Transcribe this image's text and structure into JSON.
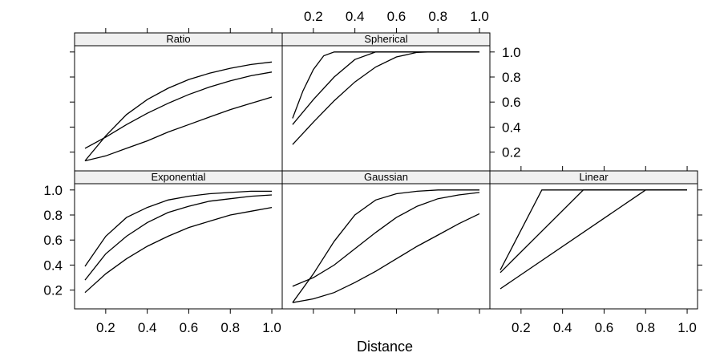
{
  "chart_data": {
    "type": "line",
    "layout": "trellis",
    "xlabel": "Distance",
    "ylabel": "",
    "xlim": [
      0.05,
      1.05
    ],
    "ylim": [
      0.05,
      1.05
    ],
    "x_ticks": [
      0.2,
      0.4,
      0.6,
      0.8,
      1.0
    ],
    "y_ticks": [
      0.2,
      0.4,
      0.6,
      0.8,
      1.0
    ],
    "x_tick_labels": [
      "0.2",
      "0.4",
      "0.6",
      "0.8",
      "1.0"
    ],
    "y_tick_labels": [
      "0.2",
      "0.4",
      "0.6",
      "0.8",
      "1.0"
    ],
    "line_color": "#000000",
    "strip_color": "#f0f0f0",
    "panels": [
      {
        "title": "Ratio",
        "row": 0,
        "col": 0,
        "series": [
          {
            "x": [
              0.1,
              0.2,
              0.3,
              0.4,
              0.5,
              0.6,
              0.7,
              0.8,
              0.9,
              1.0
            ],
            "y": [
              0.13,
              0.33,
              0.5,
              0.62,
              0.71,
              0.78,
              0.83,
              0.87,
              0.9,
              0.92
            ]
          },
          {
            "x": [
              0.1,
              0.2,
              0.3,
              0.4,
              0.5,
              0.6,
              0.7,
              0.8,
              0.9,
              1.0
            ],
            "y": [
              0.23,
              0.32,
              0.42,
              0.51,
              0.59,
              0.66,
              0.72,
              0.77,
              0.81,
              0.84
            ]
          },
          {
            "x": [
              0.1,
              0.2,
              0.3,
              0.4,
              0.5,
              0.6,
              0.7,
              0.8,
              0.9,
              1.0
            ],
            "y": [
              0.13,
              0.17,
              0.23,
              0.29,
              0.36,
              0.42,
              0.48,
              0.54,
              0.59,
              0.64
            ]
          }
        ]
      },
      {
        "title": "Spherical",
        "row": 0,
        "col": 1,
        "series": [
          {
            "x": [
              0.1,
              0.15,
              0.2,
              0.25,
              0.3,
              0.4,
              0.5,
              0.6,
              0.7,
              0.8,
              0.9,
              1.0
            ],
            "y": [
              0.47,
              0.69,
              0.86,
              0.97,
              1.0,
              1.0,
              1.0,
              1.0,
              1.0,
              1.0,
              1.0,
              1.0
            ]
          },
          {
            "x": [
              0.1,
              0.2,
              0.3,
              0.4,
              0.5,
              0.6,
              0.7,
              0.8,
              0.9,
              1.0
            ],
            "y": [
              0.42,
              0.62,
              0.8,
              0.94,
              1.0,
              1.0,
              1.0,
              1.0,
              1.0,
              1.0
            ]
          },
          {
            "x": [
              0.1,
              0.2,
              0.3,
              0.4,
              0.5,
              0.6,
              0.7,
              0.75,
              0.8,
              0.9,
              1.0
            ],
            "y": [
              0.26,
              0.44,
              0.61,
              0.76,
              0.88,
              0.96,
              0.997,
              1.0,
              1.0,
              1.0,
              1.0
            ]
          }
        ]
      },
      {
        "title": "Exponential",
        "row": 1,
        "col": 0,
        "series": [
          {
            "x": [
              0.1,
              0.2,
              0.3,
              0.4,
              0.5,
              0.6,
              0.7,
              0.8,
              0.9,
              1.0
            ],
            "y": [
              0.39,
              0.63,
              0.78,
              0.86,
              0.92,
              0.95,
              0.97,
              0.98,
              0.99,
              0.99
            ]
          },
          {
            "x": [
              0.1,
              0.2,
              0.3,
              0.4,
              0.5,
              0.6,
              0.7,
              0.8,
              0.9,
              1.0
            ],
            "y": [
              0.28,
              0.49,
              0.63,
              0.74,
              0.82,
              0.87,
              0.91,
              0.93,
              0.95,
              0.96
            ]
          },
          {
            "x": [
              0.1,
              0.2,
              0.3,
              0.4,
              0.5,
              0.6,
              0.7,
              0.8,
              0.9,
              1.0
            ],
            "y": [
              0.18,
              0.33,
              0.45,
              0.55,
              0.63,
              0.7,
              0.75,
              0.8,
              0.83,
              0.86
            ]
          }
        ]
      },
      {
        "title": "Gaussian",
        "row": 1,
        "col": 1,
        "series": [
          {
            "x": [
              0.1,
              0.2,
              0.3,
              0.4,
              0.5,
              0.6,
              0.7,
              0.8,
              0.9,
              1.0
            ],
            "y": [
              0.1,
              0.33,
              0.59,
              0.8,
              0.92,
              0.97,
              0.99,
              1.0,
              1.0,
              1.0
            ]
          },
          {
            "x": [
              0.1,
              0.2,
              0.3,
              0.4,
              0.5,
              0.6,
              0.7,
              0.8,
              0.9,
              1.0
            ],
            "y": [
              0.23,
              0.3,
              0.4,
              0.53,
              0.66,
              0.78,
              0.87,
              0.93,
              0.96,
              0.98
            ]
          },
          {
            "x": [
              0.1,
              0.2,
              0.3,
              0.4,
              0.5,
              0.6,
              0.7,
              0.8,
              0.9,
              1.0
            ],
            "y": [
              0.1,
              0.13,
              0.18,
              0.26,
              0.35,
              0.45,
              0.55,
              0.64,
              0.73,
              0.81
            ]
          }
        ]
      },
      {
        "title": "Linear",
        "row": 1,
        "col": 2,
        "series": [
          {
            "x": [
              0.1,
              0.3,
              1.0
            ],
            "y": [
              0.36,
              1.0,
              1.0
            ]
          },
          {
            "x": [
              0.1,
              0.5,
              1.0
            ],
            "y": [
              0.34,
              1.0,
              1.0
            ]
          },
          {
            "x": [
              0.1,
              0.8,
              1.0
            ],
            "y": [
              0.21,
              1.0,
              1.0
            ]
          }
        ]
      }
    ]
  }
}
